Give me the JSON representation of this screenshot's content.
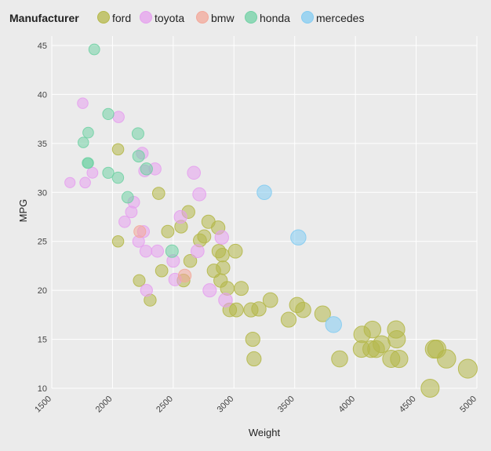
{
  "chart_data": {
    "type": "scatter",
    "title": "",
    "xlabel": "Weight",
    "ylabel": "MPG",
    "xlim": [
      1500,
      5000
    ],
    "ylim": [
      10,
      45
    ],
    "xticks": [
      1500,
      2000,
      2500,
      3000,
      3500,
      4000,
      4500,
      5000
    ],
    "yticks": [
      10,
      15,
      20,
      25,
      30,
      35,
      40,
      45
    ],
    "grid": true,
    "legend": {
      "title": "Manufacturer",
      "position": "top",
      "entries": [
        "ford",
        "toyota",
        "bmw",
        "honda",
        "mercedes"
      ]
    },
    "colors": {
      "ford": "#b5b84a",
      "toyota": "#e6a0ee",
      "bmw": "#f3a89a",
      "honda": "#72d1a5",
      "mercedes": "#84ccf2"
    },
    "size_encoding": "weight",
    "series": [
      {
        "name": "ford",
        "points": [
          [
            2046,
            34.4
          ],
          [
            2046,
            25
          ],
          [
            2220,
            21
          ],
          [
            2310,
            19
          ],
          [
            2380,
            29.9
          ],
          [
            2405,
            22
          ],
          [
            2455,
            26
          ],
          [
            2565,
            26.5
          ],
          [
            2585,
            21
          ],
          [
            2625,
            28
          ],
          [
            2640,
            23
          ],
          [
            2720,
            25.1
          ],
          [
            2755,
            25.5
          ],
          [
            2790,
            27
          ],
          [
            2835,
            22
          ],
          [
            2870,
            26.4
          ],
          [
            2875,
            24
          ],
          [
            2890,
            21
          ],
          [
            2905,
            23.6
          ],
          [
            2910,
            22.3
          ],
          [
            2945,
            20.2
          ],
          [
            2965,
            18
          ],
          [
            3012,
            24
          ],
          [
            3020,
            18
          ],
          [
            3060,
            20.2
          ],
          [
            3140,
            18
          ],
          [
            3155,
            15
          ],
          [
            3165,
            13
          ],
          [
            3205,
            18.1
          ],
          [
            3300,
            19
          ],
          [
            3450,
            17
          ],
          [
            3520,
            18.5
          ],
          [
            3570,
            18
          ],
          [
            3730,
            17.6
          ],
          [
            3870,
            13
          ],
          [
            4050,
            14
          ],
          [
            4055,
            15.5
          ],
          [
            4130,
            14
          ],
          [
            4140,
            16
          ],
          [
            4170,
            14
          ],
          [
            4215,
            14.5
          ],
          [
            4295,
            13
          ],
          [
            4335,
            16
          ],
          [
            4340,
            15
          ],
          [
            4360,
            13
          ],
          [
            4615,
            10
          ],
          [
            4650,
            14
          ],
          [
            4670,
            14
          ],
          [
            4750,
            13
          ],
          [
            4925,
            12
          ]
        ]
      },
      {
        "name": "toyota",
        "points": [
          [
            1650,
            31
          ],
          [
            1755,
            39.1
          ],
          [
            1775,
            31
          ],
          [
            1835,
            32
          ],
          [
            2050,
            37.7
          ],
          [
            2100,
            27
          ],
          [
            2155,
            28
          ],
          [
            2175,
            29
          ],
          [
            2215,
            25
          ],
          [
            2245,
            34
          ],
          [
            2255,
            26
          ],
          [
            2265,
            32.2
          ],
          [
            2275,
            24
          ],
          [
            2280,
            20
          ],
          [
            2350,
            32.4
          ],
          [
            2370,
            24
          ],
          [
            2500,
            23
          ],
          [
            2515,
            21.1
          ],
          [
            2560,
            27.5
          ],
          [
            2670,
            32
          ],
          [
            2700,
            24
          ],
          [
            2715,
            29.8
          ],
          [
            2800,
            20
          ],
          [
            2900,
            25.4
          ],
          [
            2930,
            19
          ]
        ]
      },
      {
        "name": "bmw",
        "points": [
          [
            2225,
            26
          ],
          [
            2595,
            21.5
          ]
        ]
      },
      {
        "name": "honda",
        "points": [
          [
            1760,
            35.1
          ],
          [
            1795,
            33
          ],
          [
            1800,
            36.1
          ],
          [
            1800,
            33
          ],
          [
            1850,
            44.6
          ],
          [
            1965,
            32
          ],
          [
            1965,
            38
          ],
          [
            2045,
            31.5
          ],
          [
            2125,
            29.5
          ],
          [
            2210,
            36
          ],
          [
            2215,
            33.7
          ],
          [
            2280,
            32.4
          ],
          [
            2490,
            24
          ]
        ]
      },
      {
        "name": "mercedes",
        "points": [
          [
            3250,
            30
          ],
          [
            3530,
            25.4
          ],
          [
            3820,
            16.5
          ]
        ]
      }
    ]
  }
}
